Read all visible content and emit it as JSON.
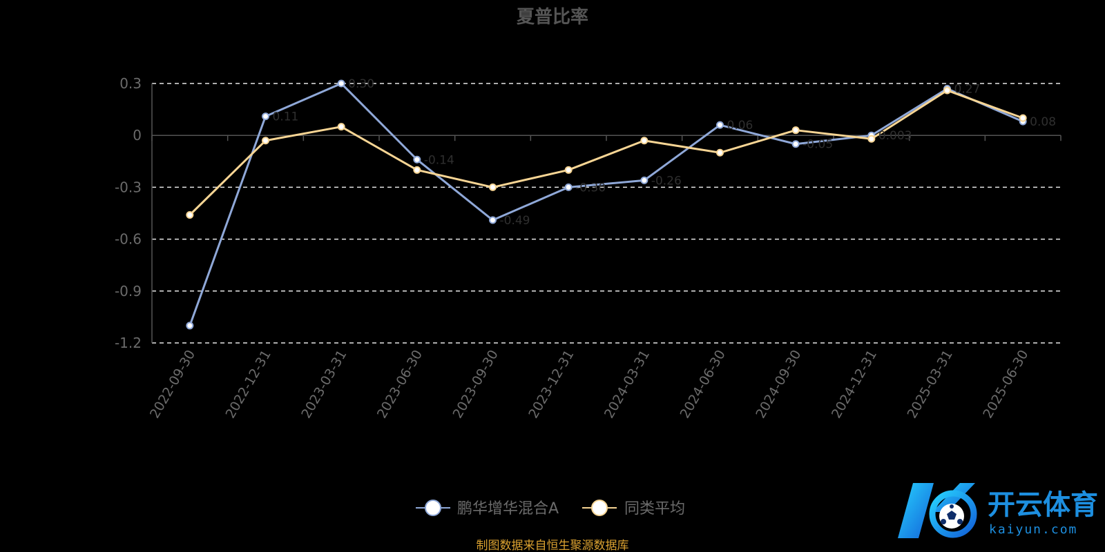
{
  "chart_data": {
    "type": "line",
    "title": "夏普比率",
    "categories": [
      "2022-09-30",
      "2022-12-31",
      "2023-03-31",
      "2023-06-30",
      "2023-09-30",
      "2023-12-31",
      "2024-03-31",
      "2024-06-30",
      "2024-09-30",
      "2024-12-31",
      "2025-03-31",
      "2025-06-30"
    ],
    "series": [
      {
        "name": "鹏华增华混合A",
        "color": "#8fa8d8",
        "values": [
          -1.1,
          0.11,
          0.3,
          -0.14,
          -0.49,
          -0.3,
          -0.26,
          0.06,
          -0.05,
          0.0,
          0.27,
          0.08
        ]
      },
      {
        "name": "同类平均",
        "color": "#f7d594",
        "values": [
          -0.46,
          -0.03,
          0.05,
          -0.2,
          -0.3,
          -0.2,
          -0.03,
          -0.1,
          0.03,
          -0.02,
          0.26,
          0.1
        ]
      }
    ],
    "data_labels": [
      "",
      "0.11",
      "0.30",
      "-0.14",
      "-0.49",
      "-0.30",
      "-0.26",
      "0.06",
      "-0.05",
      "0.003",
      "0.27",
      "0.08"
    ],
    "yticks": [
      "0.3",
      "0",
      "-0.3",
      "-0.6",
      "-0.9",
      "-1.2"
    ],
    "ylim": [
      -1.2,
      0.3
    ],
    "grid": "dashed horizontal",
    "legend_position": "bottom-center"
  },
  "source_note": "制图数据来自恒生聚源数据库",
  "logo": {
    "text": "开云体育",
    "sub": "kaiyun.com"
  }
}
